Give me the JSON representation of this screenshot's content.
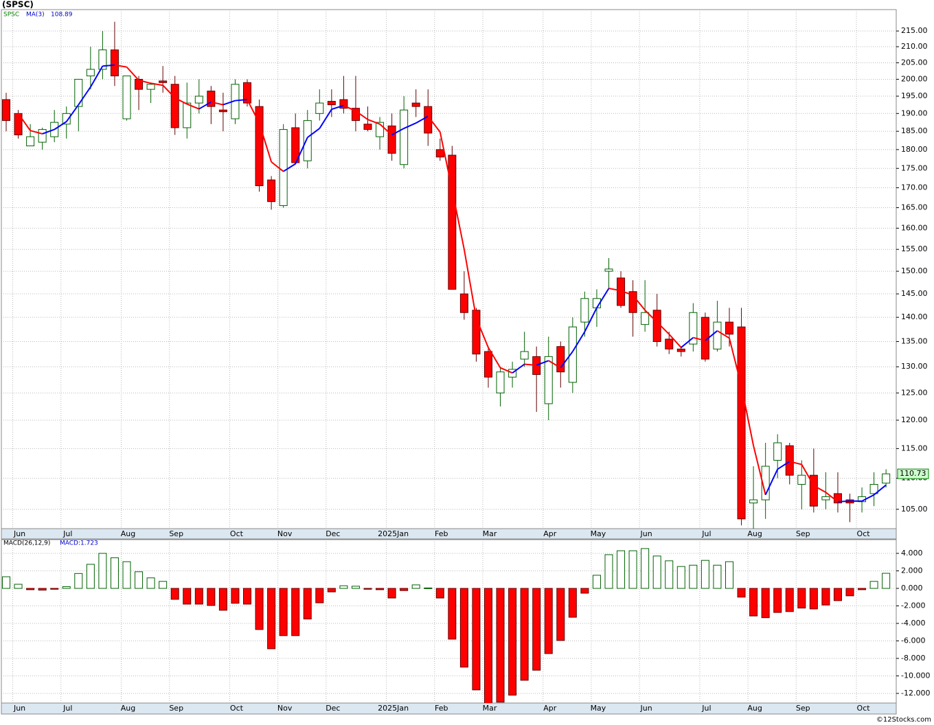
{
  "title": "(SPSC)",
  "footer": "©12Stocks.com",
  "chart_data": [
    {
      "type": "candlestick",
      "symbol": "SPSC",
      "log_scale": true,
      "grid": true,
      "up_color": "#008000",
      "down_color": "#ff0000",
      "categories": [
        null,
        "Jun",
        null,
        null,
        null,
        "Jul",
        null,
        null,
        null,
        null,
        "Aug",
        null,
        null,
        null,
        "Sep",
        null,
        null,
        null,
        null,
        "Oct",
        null,
        null,
        null,
        "Nov",
        null,
        null,
        null,
        "Dec",
        null,
        null,
        null,
        null,
        "2025Jan",
        null,
        null,
        null,
        "Feb",
        null,
        null,
        null,
        "Mar",
        null,
        null,
        null,
        null,
        "Apr",
        null,
        null,
        null,
        "May",
        null,
        null,
        null,
        "Jun",
        null,
        null,
        null,
        null,
        "Jul",
        null,
        null,
        null,
        "Aug",
        null,
        null,
        null,
        "Sep",
        null,
        null,
        null,
        null,
        "Oct",
        null,
        null
      ],
      "open": [
        194,
        190,
        181,
        182,
        183.5,
        187,
        192,
        201,
        203,
        209,
        188.5,
        200,
        197,
        199.5,
        198.5,
        186,
        193,
        196.5,
        191,
        188.5,
        199,
        192,
        172,
        165.5,
        186,
        177,
        190,
        193.5,
        194,
        191.5,
        187,
        183.5,
        186.5,
        176,
        193,
        192,
        180,
        178.5,
        145,
        141.5,
        133,
        125,
        128,
        131.5,
        132,
        123,
        134,
        127,
        139,
        142,
        150,
        148.5,
        145.5,
        138.5,
        141.5,
        135.5,
        133.5,
        134.5,
        140,
        133.5,
        139,
        138,
        106,
        106.5,
        113,
        115.5,
        109,
        110.5,
        106.5,
        107.5,
        106.5,
        106.2,
        107.5,
        109.2
      ],
      "high": [
        196,
        191,
        187,
        186,
        191,
        192,
        200,
        210,
        215,
        218,
        201,
        201,
        199,
        204,
        201,
        199,
        200,
        198,
        196,
        200,
        200,
        194,
        173,
        187,
        190,
        191,
        197,
        197,
        201,
        201,
        192,
        189,
        190,
        195,
        197,
        197,
        183,
        181,
        150,
        142,
        134,
        130,
        131,
        137,
        134,
        136,
        135,
        140,
        145.5,
        146,
        153,
        150,
        148,
        148,
        145,
        137,
        134,
        143,
        141,
        143.5,
        142,
        142,
        112,
        116,
        117.5,
        116,
        113,
        115,
        111,
        111,
        107.5,
        108.5,
        111,
        111.5
      ],
      "low": [
        185,
        183,
        181,
        180,
        182,
        183,
        185,
        197,
        200,
        198,
        188,
        191,
        193,
        196,
        184,
        183,
        190,
        187,
        185,
        187,
        192,
        169,
        164.5,
        165,
        176,
        175,
        188,
        189,
        190,
        185,
        185,
        180,
        177,
        175,
        189,
        181,
        177,
        146,
        139.5,
        131,
        126,
        122.5,
        126,
        130,
        121.5,
        120,
        126,
        125,
        136,
        138,
        146,
        142,
        136,
        137,
        134,
        132.5,
        132,
        133,
        131,
        133,
        134,
        102.5,
        102,
        103.5,
        110,
        109,
        105,
        104.5,
        105,
        104.5,
        103,
        104.5,
        105.5,
        108.5
      ],
      "close": [
        188,
        184,
        183.5,
        185.5,
        187.5,
        190,
        200,
        203,
        209,
        201,
        201,
        197,
        198.5,
        199,
        186,
        193,
        195,
        192,
        190.5,
        198.5,
        193,
        170.5,
        166.5,
        185.5,
        176.5,
        188,
        193,
        192.5,
        191.5,
        188,
        185.5,
        187.5,
        179,
        191,
        192,
        184.5,
        178,
        146,
        141,
        132.5,
        128,
        129,
        129.5,
        133,
        128.5,
        132,
        129,
        138,
        144,
        144,
        150.5,
        142.5,
        141,
        141,
        135,
        133.5,
        133,
        141,
        131.5,
        139,
        136.5,
        103.5,
        106.5,
        112,
        116,
        110.5,
        110.5,
        105.5,
        107,
        106,
        106,
        107,
        109,
        110.73
      ],
      "ma": {
        "name": "MA(3)",
        "rising_color": "#0000ff",
        "falling_color": "#ff0000",
        "values": [
          null,
          190,
          185.2,
          184.3,
          185.5,
          187.7,
          192.5,
          197.7,
          204,
          204.3,
          203.7,
          199.7,
          198.8,
          198.2,
          194.5,
          192.7,
          191.3,
          193.3,
          192.5,
          193.7,
          194,
          187.3,
          176.7,
          174.2,
          176.2,
          183.3,
          185.8,
          191.2,
          192.3,
          190.7,
          188.3,
          187,
          184,
          185.8,
          187.3,
          189.2,
          184.8,
          169.5,
          155,
          139.8,
          133.8,
          129.8,
          128.8,
          130.5,
          130.3,
          131.2,
          129.8,
          133,
          137,
          142,
          146.2,
          145.7,
          144.7,
          141.5,
          139,
          136.5,
          133.8,
          135.8,
          135.2,
          137.2,
          135.7,
          126.3,
          115.5,
          107.3,
          111.5,
          112.8,
          112.3,
          108.8,
          107.7,
          106.2,
          106.3,
          106.3,
          107.3,
          108.89
        ]
      },
      "ylim": [
        102,
        222
      ],
      "yticks": [
        {
          "value": 105,
          "label": "105.00"
        },
        {
          "value": 110,
          "label": "110.00"
        },
        {
          "value": 115,
          "label": "115.00"
        },
        {
          "value": 120,
          "label": "120.00"
        },
        {
          "value": 125,
          "label": "125.00"
        },
        {
          "value": 130,
          "label": "130.00"
        },
        {
          "value": 135,
          "label": "135.00"
        },
        {
          "value": 140,
          "label": "140.00"
        },
        {
          "value": 145,
          "label": "145.00"
        },
        {
          "value": 150,
          "label": "150.00"
        },
        {
          "value": 155,
          "label": "155.00"
        },
        {
          "value": 160,
          "label": "160.00"
        },
        {
          "value": 165,
          "label": "165.00"
        },
        {
          "value": 170,
          "label": "170.00"
        },
        {
          "value": 175,
          "label": "175.00"
        },
        {
          "value": 180,
          "label": "180.00"
        },
        {
          "value": 185,
          "label": "185.00"
        },
        {
          "value": 190,
          "label": "190.00"
        },
        {
          "value": 195,
          "label": "195.00"
        },
        {
          "value": 200,
          "label": "200.00"
        },
        {
          "value": 205,
          "label": "205.00"
        },
        {
          "value": 210,
          "label": "210.00"
        },
        {
          "value": 215,
          "label": "215.00"
        }
      ]
    },
    {
      "type": "bar",
      "name": "MACD(26,12,9)",
      "value_label": "MACD:1.723",
      "grid": true,
      "up_color": "#008000",
      "down_color": "#ff0000",
      "values": [
        1.33,
        0.47,
        -0.15,
        -0.2,
        -0.1,
        0.2,
        1.7,
        2.75,
        4.0,
        3.5,
        3.05,
        1.9,
        1.2,
        0.8,
        -1.25,
        -1.8,
        -1.8,
        -1.95,
        -2.5,
        -1.7,
        -1.8,
        -4.7,
        -6.9,
        -5.4,
        -5.4,
        -3.5,
        -1.65,
        -0.4,
        0.3,
        0.25,
        -0.1,
        -0.15,
        -1.1,
        -0.25,
        0.4,
        0.05,
        -1.1,
        -5.8,
        -9,
        -11.6,
        -13.3,
        -13,
        -12.2,
        -10.5,
        -9.35,
        -7.45,
        -5.95,
        -3.3,
        -0.55,
        1.5,
        3.85,
        4.3,
        4.3,
        4.55,
        3.7,
        3.15,
        2.5,
        2.65,
        3.2,
        2.65,
        3.05,
        -1.0,
        -3.15,
        -3.35,
        -2.75,
        -2.65,
        -2.25,
        -2.35,
        -1.9,
        -1.4,
        -0.85,
        -0.15,
        0.8,
        1.723
      ],
      "ylim": [
        -13.1,
        5.57
      ],
      "yticks": [
        {
          "value": 4,
          "label": "4.000"
        },
        {
          "value": 2,
          "label": "2.000"
        },
        {
          "value": 0,
          "label": "0.000"
        },
        {
          "value": -2,
          "label": "-2.000"
        },
        {
          "value": -4,
          "label": "-4.000"
        },
        {
          "value": -6,
          "label": "-6.000"
        },
        {
          "value": -8,
          "label": "-8.000"
        },
        {
          "value": -10,
          "label": "-10.000"
        },
        {
          "value": -12,
          "label": "-12.000"
        }
      ]
    }
  ]
}
